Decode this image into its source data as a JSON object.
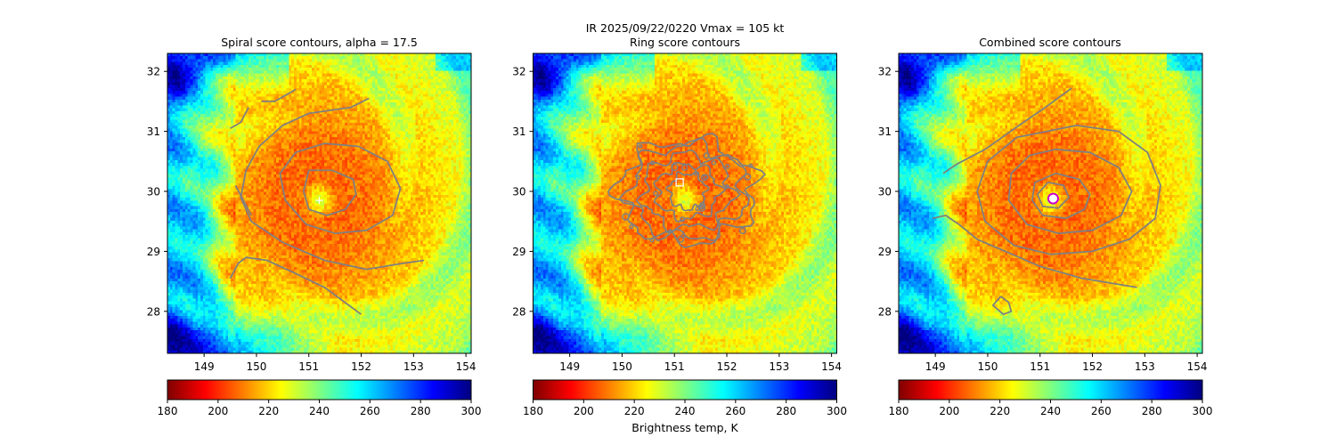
{
  "figure": {
    "suptitle_line1": "IR  2025/09/22/0220    Vmax = 105 kt",
    "colorbar_label": "Brightness temp, K"
  },
  "colormap": {
    "name": "jet_r",
    "stops": [
      "#7f0000",
      "#ff0000",
      "#ff7f00",
      "#ffff00",
      "#7fff7f",
      "#00ffff",
      "#007fff",
      "#0000ff",
      "#00007f"
    ]
  },
  "colors": {
    "contour": "#808080",
    "center_square": "#ffffff",
    "center_circle_fill": "#ffffff",
    "center_circle_ring": "#cc00cc"
  },
  "chart_data": [
    {
      "type": "heatmap",
      "title": "Spiral score contours, alpha = 17.5",
      "xlim": [
        148.3,
        154.1
      ],
      "ylim": [
        27.3,
        32.3
      ],
      "xticks": [
        149,
        150,
        151,
        152,
        153,
        154
      ],
      "yticks": [
        28,
        29,
        30,
        31,
        32
      ],
      "colorbar": {
        "vmin": 180,
        "vmax": 300,
        "ticks": [
          180,
          200,
          220,
          240,
          260,
          280,
          300
        ]
      },
      "storm_center": [
        151.2,
        29.85
      ],
      "center_marker": "cross",
      "contours": [
        [
          [
            151.0,
            30.35
          ],
          [
            151.45,
            30.35
          ],
          [
            151.85,
            30.2
          ],
          [
            151.9,
            29.95
          ],
          [
            151.7,
            29.7
          ],
          [
            151.35,
            29.6
          ],
          [
            151.0,
            29.7
          ],
          [
            150.9,
            30.0
          ],
          [
            151.0,
            30.35
          ]
        ],
        [
          [
            151.3,
            30.8
          ],
          [
            151.95,
            30.75
          ],
          [
            152.5,
            30.5
          ],
          [
            152.75,
            30.05
          ],
          [
            152.6,
            29.6
          ],
          [
            152.1,
            29.35
          ],
          [
            151.5,
            29.3
          ],
          [
            150.95,
            29.45
          ],
          [
            150.55,
            29.85
          ],
          [
            150.45,
            30.3
          ],
          [
            150.75,
            30.65
          ],
          [
            151.3,
            30.8
          ]
        ],
        [
          [
            152.15,
            31.55
          ],
          [
            151.8,
            31.4
          ],
          [
            151.0,
            31.3
          ],
          [
            150.5,
            31.1
          ],
          [
            150.05,
            30.75
          ],
          [
            149.8,
            30.35
          ],
          [
            149.7,
            29.9
          ],
          [
            149.9,
            29.5
          ],
          [
            150.5,
            29.15
          ],
          [
            151.3,
            28.85
          ],
          [
            152.1,
            28.7
          ],
          [
            152.8,
            28.8
          ],
          [
            153.2,
            28.85
          ]
        ],
        [
          [
            149.5,
            28.55
          ],
          [
            149.65,
            28.8
          ],
          [
            149.8,
            28.9
          ],
          [
            150.2,
            28.85
          ],
          [
            150.7,
            28.65
          ],
          [
            151.3,
            28.4
          ],
          [
            152.0,
            27.95
          ]
        ],
        [
          [
            149.5,
            31.05
          ],
          [
            149.7,
            31.15
          ],
          [
            149.85,
            31.4
          ]
        ],
        [
          [
            150.1,
            31.5
          ],
          [
            150.35,
            31.5
          ],
          [
            150.55,
            31.6
          ],
          [
            150.75,
            31.7
          ]
        ],
        [
          [
            149.9,
            29.6
          ],
          [
            149.75,
            29.85
          ],
          [
            149.6,
            30.1
          ]
        ]
      ]
    },
    {
      "type": "heatmap",
      "title": "Ring score contours",
      "xlim": [
        148.3,
        154.1
      ],
      "ylim": [
        27.3,
        32.3
      ],
      "xticks": [
        149,
        150,
        151,
        152,
        153,
        154
      ],
      "yticks": [
        28,
        29,
        30,
        31,
        32
      ],
      "colorbar": {
        "vmin": 180,
        "vmax": 300,
        "ticks": [
          180,
          200,
          220,
          240,
          260,
          280,
          300
        ]
      },
      "storm_center": [
        151.2,
        29.85
      ],
      "center_marker": "square",
      "center_marker_pos": [
        151.1,
        30.15
      ],
      "contour_cluster": {
        "center": [
          151.25,
          30.0
        ],
        "rx": [
          0.35,
          0.6,
          0.85,
          1.1,
          1.3
        ],
        "ry": [
          0.3,
          0.45,
          0.62,
          0.78,
          0.85
        ]
      }
    },
    {
      "type": "heatmap",
      "title": "Combined score contours",
      "xlim": [
        148.3,
        154.1
      ],
      "ylim": [
        27.3,
        32.3
      ],
      "xticks": [
        149,
        150,
        151,
        152,
        153,
        154
      ],
      "yticks": [
        28,
        29,
        30,
        31,
        32
      ],
      "colorbar": {
        "vmin": 180,
        "vmax": 300,
        "ticks": [
          180,
          200,
          220,
          240,
          260,
          280,
          300
        ]
      },
      "storm_center": [
        151.2,
        29.85
      ],
      "center_marker": "circle",
      "center_marker_pos": [
        151.25,
        29.88
      ],
      "contours": [
        [
          [
            151.15,
            30.15
          ],
          [
            151.45,
            30.1
          ],
          [
            151.55,
            29.9
          ],
          [
            151.35,
            29.72
          ],
          [
            151.05,
            29.75
          ],
          [
            150.95,
            29.95
          ],
          [
            151.15,
            30.15
          ]
        ],
        [
          [
            151.3,
            30.3
          ],
          [
            151.75,
            30.2
          ],
          [
            151.95,
            29.95
          ],
          [
            151.85,
            29.7
          ],
          [
            151.5,
            29.55
          ],
          [
            151.05,
            29.6
          ],
          [
            150.85,
            29.85
          ],
          [
            150.9,
            30.15
          ],
          [
            151.3,
            30.3
          ]
        ],
        [
          [
            151.3,
            30.7
          ],
          [
            151.95,
            30.65
          ],
          [
            152.5,
            30.4
          ],
          [
            152.75,
            30.0
          ],
          [
            152.55,
            29.6
          ],
          [
            152.0,
            29.35
          ],
          [
            151.35,
            29.3
          ],
          [
            150.75,
            29.45
          ],
          [
            150.4,
            29.85
          ],
          [
            150.45,
            30.3
          ],
          [
            150.8,
            30.6
          ],
          [
            151.3,
            30.7
          ]
        ],
        [
          [
            151.7,
            31.1
          ],
          [
            152.5,
            31.0
          ],
          [
            153.05,
            30.65
          ],
          [
            153.3,
            30.1
          ],
          [
            153.2,
            29.55
          ],
          [
            152.7,
            29.2
          ],
          [
            152.0,
            29.0
          ],
          [
            151.2,
            28.95
          ],
          [
            150.5,
            29.1
          ],
          [
            149.95,
            29.5
          ],
          [
            149.8,
            30.0
          ],
          [
            150.0,
            30.5
          ],
          [
            150.55,
            30.9
          ],
          [
            151.7,
            31.1
          ]
        ],
        [
          [
            149.15,
            30.3
          ],
          [
            149.4,
            30.45
          ],
          [
            149.95,
            30.7
          ],
          [
            150.6,
            31.1
          ],
          [
            151.1,
            31.4
          ],
          [
            151.6,
            31.72
          ]
        ],
        [
          [
            148.95,
            29.55
          ],
          [
            149.2,
            29.6
          ],
          [
            149.45,
            29.45
          ],
          [
            149.8,
            29.2
          ],
          [
            150.2,
            29.05
          ],
          [
            151.0,
            28.75
          ],
          [
            151.8,
            28.55
          ],
          [
            152.5,
            28.45
          ],
          [
            152.85,
            28.4
          ]
        ],
        [
          [
            150.25,
            28.25
          ],
          [
            150.4,
            28.15
          ],
          [
            150.45,
            28.0
          ],
          [
            150.3,
            27.95
          ],
          [
            150.1,
            28.1
          ],
          [
            150.25,
            28.25
          ]
        ]
      ]
    }
  ]
}
